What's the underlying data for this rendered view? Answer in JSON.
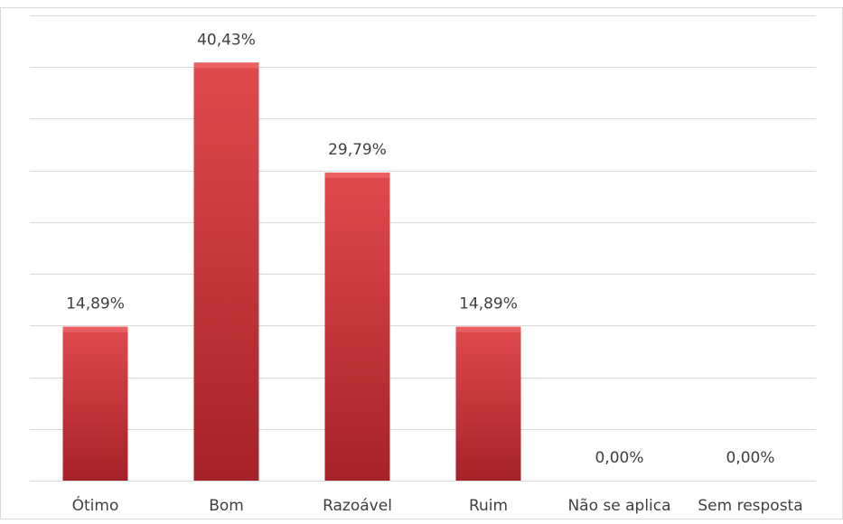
{
  "chart_data": {
    "type": "bar",
    "categories": [
      "Ótimo",
      "Bom",
      "Razoável",
      "Ruim",
      "Não se aplica",
      "Sem resposta"
    ],
    "values": [
      14.89,
      40.43,
      29.79,
      14.89,
      0.0,
      0.0
    ],
    "data_labels": [
      "14,89%",
      "40,43%",
      "29,79%",
      "14,89%",
      "0,00%",
      "0,00%"
    ],
    "title": "",
    "xlabel": "",
    "ylabel": "",
    "ylim": [
      0,
      45
    ],
    "grid": true,
    "legend": "none",
    "bar_color": "#c9333a",
    "bar_color_light": "#e04a4e",
    "bar_color_dark": "#a52228",
    "gridline_color": "#d9d9d9",
    "label_color": "#404040"
  }
}
